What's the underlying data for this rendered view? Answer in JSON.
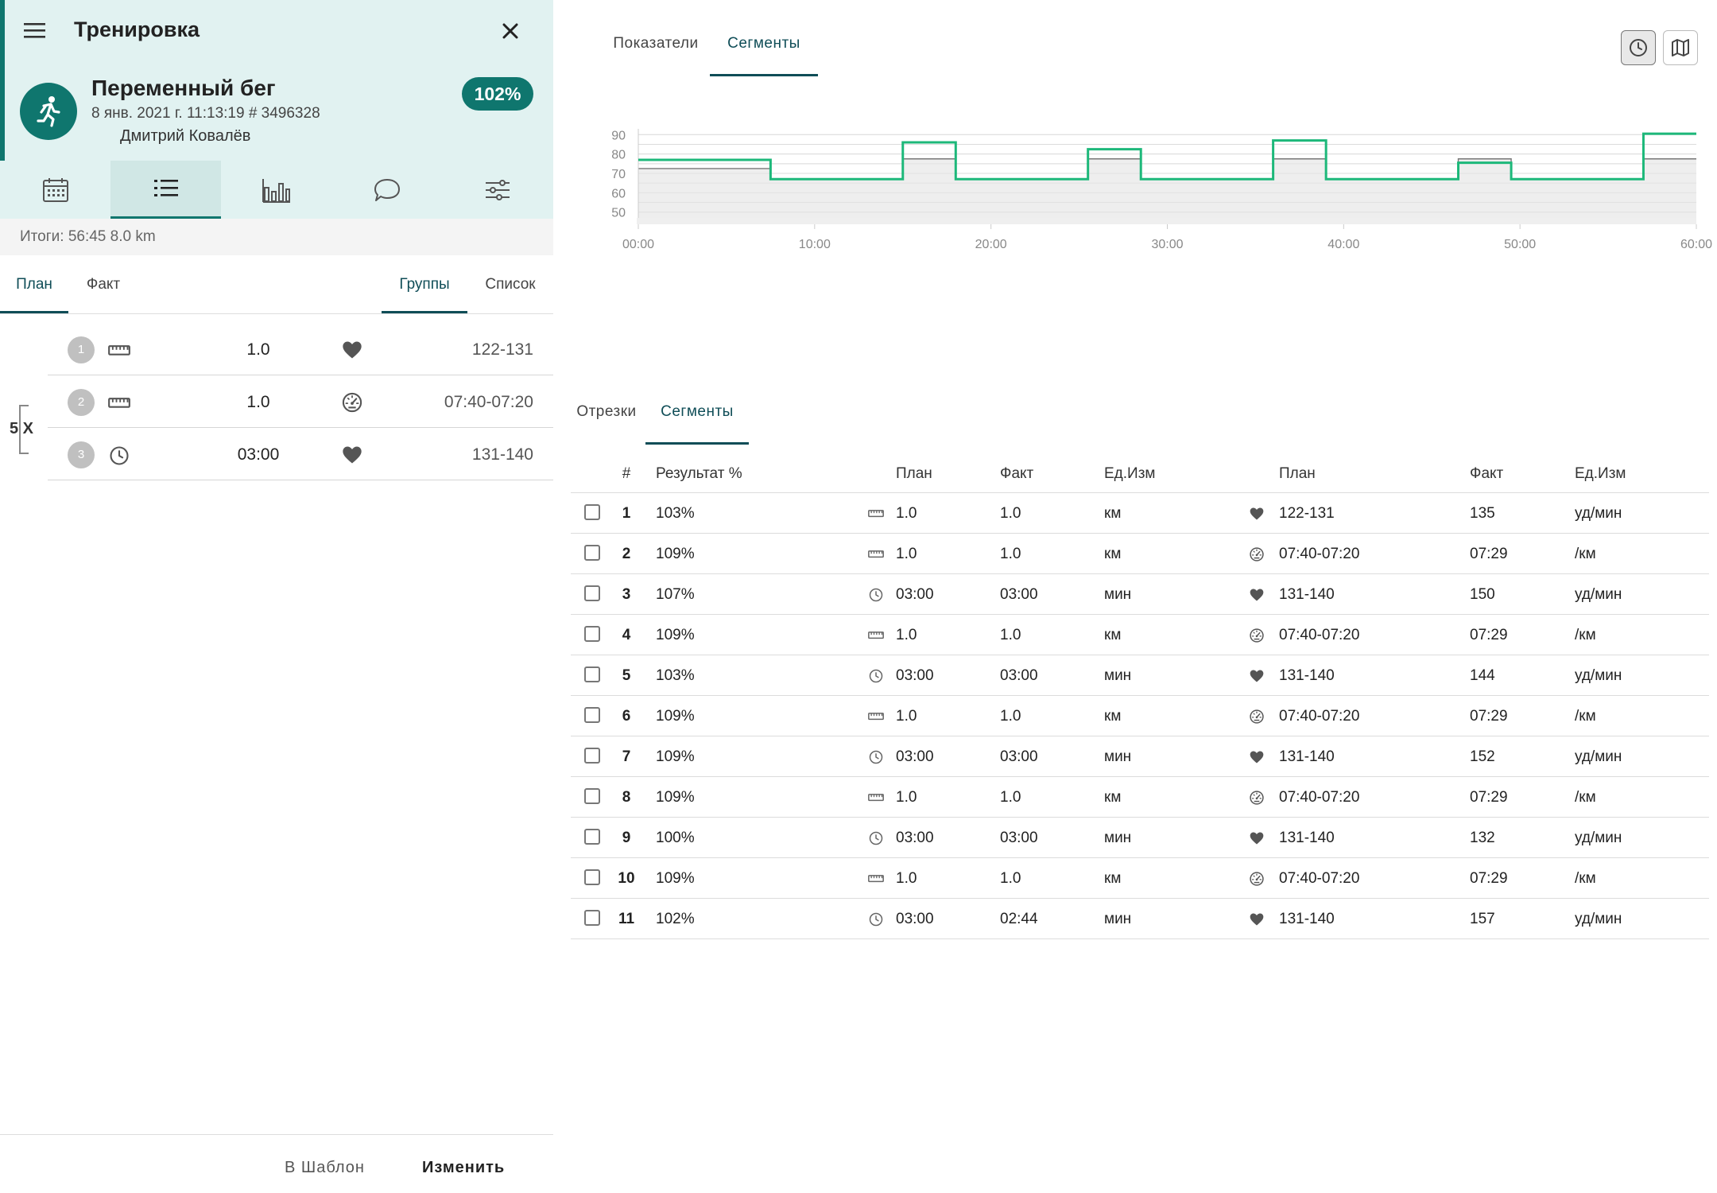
{
  "header": {
    "title": "Тренировка",
    "workout_name": "Переменный бег",
    "meta": "8 янв. 2021 г. 11:13:19 # 3496328",
    "athlete": "Дмитрий Ковалёв",
    "score": "102%",
    "accent_color": "#0f766e"
  },
  "nav_tabs": [
    {
      "icon": "calendar-icon",
      "active": false
    },
    {
      "icon": "list-icon",
      "active": true
    },
    {
      "icon": "bar-chart-icon",
      "active": false
    },
    {
      "icon": "comment-icon",
      "active": false
    },
    {
      "icon": "sliders-icon",
      "active": false
    }
  ],
  "totals": "Итоги: 56:45 8.0 km",
  "subtabs": {
    "plan": "План",
    "fact": "Факт",
    "groups": "Группы",
    "list": "Список"
  },
  "plan_rows": [
    {
      "num": "1",
      "type_icon": "ruler-icon",
      "value": "1.0",
      "metric_icon": "heart-icon",
      "target": "122-131"
    },
    {
      "num": "2",
      "type_icon": "ruler-icon",
      "value": "1.0",
      "metric_icon": "speedometer-icon",
      "target": "07:40-07:20"
    },
    {
      "num": "3",
      "type_icon": "clock-icon",
      "value": "03:00",
      "metric_icon": "heart-icon",
      "target": "131-140"
    }
  ],
  "repeat_label": "5 X",
  "footer": {
    "template_button": "В Шаблон",
    "edit_button": "Изменить"
  },
  "top_tabs": {
    "metrics": "Показатели",
    "segments": "Сегменты"
  },
  "view_buttons": [
    {
      "icon": "clock-icon",
      "active": true
    },
    {
      "icon": "map-icon",
      "active": false
    }
  ],
  "chart_data": {
    "type": "line",
    "x_ticks": [
      "00:00",
      "10:00",
      "20:00",
      "30:00",
      "40:00",
      "50:00",
      "60:00"
    ],
    "xlim_minutes": [
      0,
      60
    ],
    "y_ticks": [
      "90",
      "80",
      "70",
      "60",
      "50"
    ],
    "ylim": [
      47,
      93
    ],
    "grid": true,
    "series": [
      {
        "color": "#1db87a",
        "steps": [
          {
            "start": 0,
            "end": 7.5,
            "value": 77
          },
          {
            "start": 7.5,
            "end": 15.0,
            "value": 67
          },
          {
            "start": 15.0,
            "end": 18.0,
            "value": 86
          },
          {
            "start": 18.0,
            "end": 25.5,
            "value": 67
          },
          {
            "start": 25.5,
            "end": 28.5,
            "value": 82.5
          },
          {
            "start": 28.5,
            "end": 36.0,
            "value": 67
          },
          {
            "start": 36.0,
            "end": 39.0,
            "value": 87
          },
          {
            "start": 39.0,
            "end": 46.5,
            "value": 67
          },
          {
            "start": 46.5,
            "end": 49.5,
            "value": 75.5
          },
          {
            "start": 49.5,
            "end": 57.0,
            "value": 67
          },
          {
            "start": 57.0,
            "end": 60.0,
            "value": 90.5
          }
        ]
      },
      {
        "color": "#777777",
        "fill": "#eeeeee",
        "steps": [
          {
            "start": 0,
            "end": 7.5,
            "value": 72.5
          },
          {
            "start": 7.5,
            "end": 15.0,
            "value": 67
          },
          {
            "start": 15.0,
            "end": 18.0,
            "value": 77.5
          },
          {
            "start": 18.0,
            "end": 25.5,
            "value": 67
          },
          {
            "start": 25.5,
            "end": 28.5,
            "value": 77.5
          },
          {
            "start": 28.5,
            "end": 36.0,
            "value": 67
          },
          {
            "start": 36.0,
            "end": 39.0,
            "value": 77.5
          },
          {
            "start": 39.0,
            "end": 46.5,
            "value": 67
          },
          {
            "start": 46.5,
            "end": 49.5,
            "value": 77.5
          },
          {
            "start": 49.5,
            "end": 57.0,
            "value": 67
          },
          {
            "start": 57.0,
            "end": 60.0,
            "value": 77.5
          }
        ]
      }
    ]
  },
  "table_tabs": {
    "splits": "Отрезки",
    "segments": "Сегменты"
  },
  "table_headers": [
    "#",
    "Результат %",
    "План",
    "Факт",
    "Ед.Изм",
    "План",
    "Факт",
    "Ед.Изм"
  ],
  "table_rows": [
    {
      "idx": "1",
      "result": "103%",
      "icon1": "ruler-icon",
      "plan1": "1.0",
      "fact1": "1.0",
      "unit1": "км",
      "icon2": "heart-icon",
      "plan2": "122-131",
      "fact2": "135",
      "unit2": "уд/мин"
    },
    {
      "idx": "2",
      "result": "109%",
      "icon1": "ruler-icon",
      "plan1": "1.0",
      "fact1": "1.0",
      "unit1": "км",
      "icon2": "speedometer-icon",
      "plan2": "07:40-07:20",
      "fact2": "07:29",
      "unit2": "/км"
    },
    {
      "idx": "3",
      "result": "107%",
      "icon1": "clock-icon",
      "plan1": "03:00",
      "fact1": "03:00",
      "unit1": "мин",
      "icon2": "heart-icon",
      "plan2": "131-140",
      "fact2": "150",
      "unit2": "уд/мин"
    },
    {
      "idx": "4",
      "result": "109%",
      "icon1": "ruler-icon",
      "plan1": "1.0",
      "fact1": "1.0",
      "unit1": "км",
      "icon2": "speedometer-icon",
      "plan2": "07:40-07:20",
      "fact2": "07:29",
      "unit2": "/км"
    },
    {
      "idx": "5",
      "result": "103%",
      "icon1": "clock-icon",
      "plan1": "03:00",
      "fact1": "03:00",
      "unit1": "мин",
      "icon2": "heart-icon",
      "plan2": "131-140",
      "fact2": "144",
      "unit2": "уд/мин"
    },
    {
      "idx": "6",
      "result": "109%",
      "icon1": "ruler-icon",
      "plan1": "1.0",
      "fact1": "1.0",
      "unit1": "км",
      "icon2": "speedometer-icon",
      "plan2": "07:40-07:20",
      "fact2": "07:29",
      "unit2": "/км"
    },
    {
      "idx": "7",
      "result": "109%",
      "icon1": "clock-icon",
      "plan1": "03:00",
      "fact1": "03:00",
      "unit1": "мин",
      "icon2": "heart-icon",
      "plan2": "131-140",
      "fact2": "152",
      "unit2": "уд/мин"
    },
    {
      "idx": "8",
      "result": "109%",
      "icon1": "ruler-icon",
      "plan1": "1.0",
      "fact1": "1.0",
      "unit1": "км",
      "icon2": "speedometer-icon",
      "plan2": "07:40-07:20",
      "fact2": "07:29",
      "unit2": "/км"
    },
    {
      "idx": "9",
      "result": "100%",
      "icon1": "clock-icon",
      "plan1": "03:00",
      "fact1": "03:00",
      "unit1": "мин",
      "icon2": "heart-icon",
      "plan2": "131-140",
      "fact2": "132",
      "unit2": "уд/мин"
    },
    {
      "idx": "10",
      "result": "109%",
      "icon1": "ruler-icon",
      "plan1": "1.0",
      "fact1": "1.0",
      "unit1": "км",
      "icon2": "speedometer-icon",
      "plan2": "07:40-07:20",
      "fact2": "07:29",
      "unit2": "/км"
    },
    {
      "idx": "11",
      "result": "102%",
      "icon1": "clock-icon",
      "plan1": "03:00",
      "fact1": "02:44",
      "unit1": "мин",
      "icon2": "heart-icon",
      "plan2": "131-140",
      "fact2": "157",
      "unit2": "уд/мин"
    }
  ]
}
